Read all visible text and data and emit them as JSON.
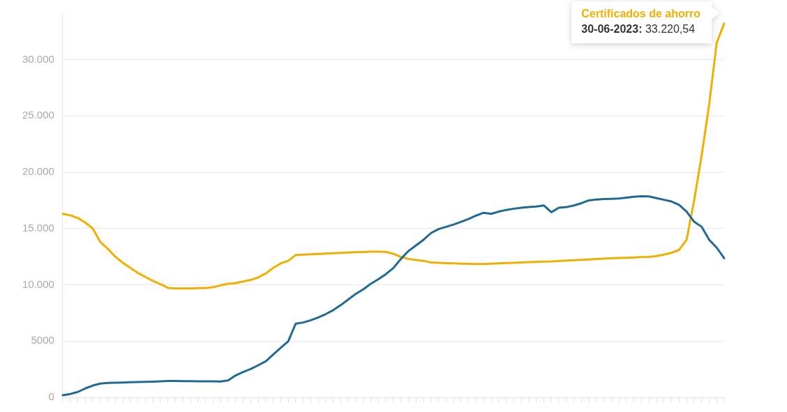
{
  "chart_data": {
    "type": "line",
    "categories": [
      null,
      null,
      null,
      null,
      null,
      null,
      null,
      null,
      null,
      null,
      null,
      null,
      null,
      null,
      null,
      null,
      null,
      null,
      null,
      null,
      null,
      null,
      null,
      null,
      null,
      null,
      null,
      null,
      null,
      null,
      null,
      null,
      null,
      null,
      null,
      null,
      null,
      null,
      null,
      null,
      null,
      null,
      null,
      null,
      null,
      null,
      null,
      null,
      null,
      null,
      null,
      null,
      null,
      null,
      null,
      null,
      null,
      null,
      null,
      null,
      null,
      null,
      null,
      null,
      null,
      null,
      null,
      null,
      null,
      null,
      null,
      null,
      null,
      null,
      null,
      null,
      null,
      null,
      null,
      null,
      null,
      null,
      null,
      null,
      null,
      null,
      null,
      null,
      null
    ],
    "series": [
      {
        "color": "#1f6a94",
        "values": [
          180,
          300,
          480,
          790,
          1050,
          1220,
          1280,
          1300,
          1320,
          1340,
          1360,
          1380,
          1400,
          1420,
          1450,
          1450,
          1440,
          1440,
          1430,
          1420,
          1420,
          1410,
          1500,
          1950,
          2250,
          2520,
          2850,
          3200,
          3800,
          4400,
          4980,
          6550,
          6650,
          6850,
          7100,
          7400,
          7750,
          8200,
          8700,
          9200,
          9600,
          10100,
          10500,
          10950,
          11500,
          12300,
          13000,
          13500,
          14000,
          14600,
          14950,
          15150,
          15350,
          15600,
          15850,
          16150,
          16400,
          16300,
          16500,
          16650,
          16760,
          16850,
          16900,
          16960,
          17050,
          16450,
          16850,
          16900,
          17050,
          17250,
          17500,
          17580,
          17620,
          17640,
          17660,
          17750,
          17820,
          17870,
          17850,
          17700,
          17550,
          17400,
          17100,
          16500,
          15600,
          15150,
          14000,
          13300,
          12360
        ]
      },
      {
        "name": "Certificados de ahorro",
        "color": "#f0b000",
        "values": [
          16300,
          16170,
          15940,
          15530,
          15000,
          13800,
          13200,
          12500,
          11950,
          11500,
          11050,
          10700,
          10350,
          10050,
          9730,
          9680,
          9670,
          9680,
          9700,
          9710,
          9780,
          9950,
          10100,
          10140,
          10300,
          10430,
          10650,
          11000,
          11500,
          11900,
          12130,
          12650,
          12680,
          12710,
          12740,
          12770,
          12800,
          12830,
          12860,
          12890,
          12920,
          12950,
          12950,
          12930,
          12750,
          12480,
          12300,
          12200,
          12130,
          11980,
          11950,
          11920,
          11900,
          11880,
          11860,
          11850,
          11840,
          11870,
          11900,
          11930,
          11960,
          11990,
          12010,
          12040,
          12060,
          12070,
          12110,
          12150,
          12180,
          12210,
          12250,
          12290,
          12320,
          12350,
          12380,
          12400,
          12430,
          12460,
          12480,
          12560,
          12680,
          12850,
          13100,
          14000,
          17500,
          21500,
          26000,
          31500,
          33220.54
        ]
      }
    ],
    "ylim": [
      0,
      34000
    ],
    "yticks": [
      0,
      5000,
      {
        "value": 10000,
        "label": "10.000"
      },
      {
        "value": 15000,
        "label": "15.000"
      },
      {
        "value": 20000,
        "label": "20.000"
      },
      {
        "value": 25000,
        "label": "25.000"
      },
      {
        "value": 30000,
        "label": "30.000"
      }
    ],
    "grid": "y",
    "tick_labels": "y",
    "marker": "none",
    "line_style": "solid",
    "annotations": [
      "30-06-2023: 33.220,54"
    ]
  }
}
